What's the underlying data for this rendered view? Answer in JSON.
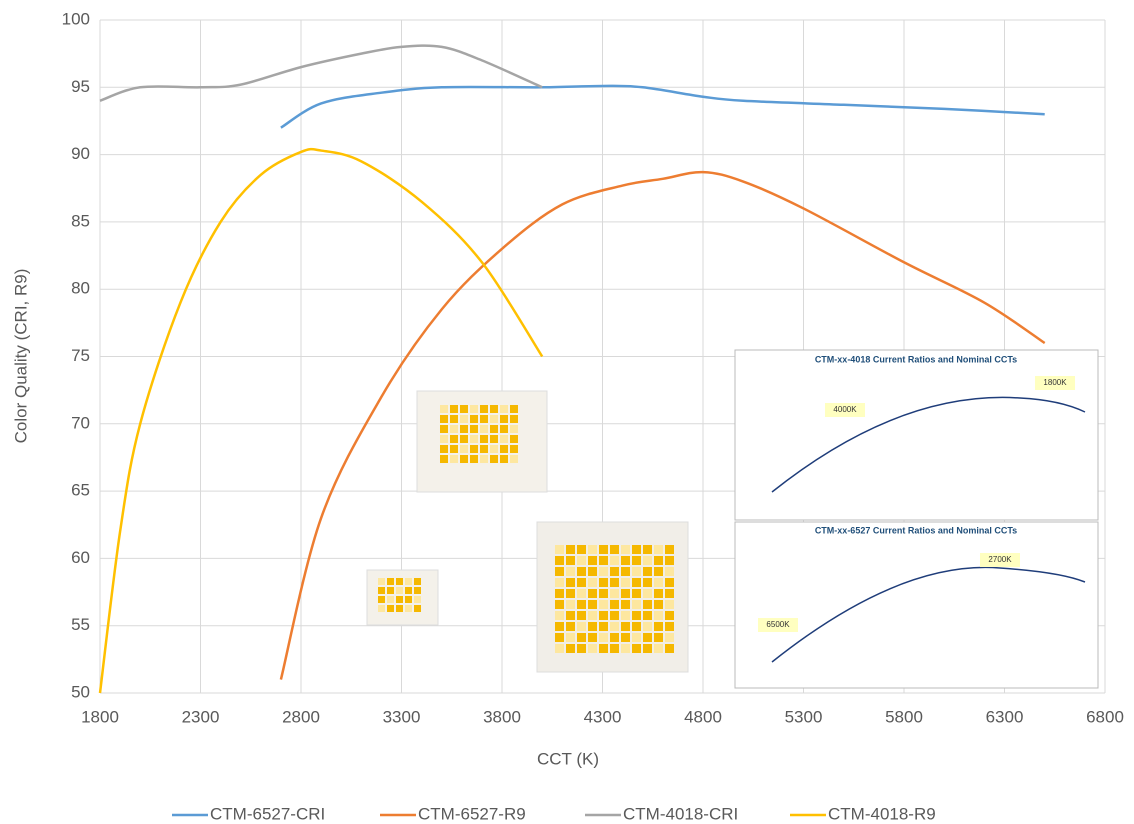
{
  "chart_data": {
    "type": "line",
    "xlabel": "CCT (K)",
    "ylabel": "Color Quality (CRI, R9)",
    "xlim": [
      1800,
      6800
    ],
    "xticks": [
      1800,
      2300,
      2800,
      3300,
      3800,
      4300,
      4800,
      5300,
      5800,
      6300,
      6800
    ],
    "ylim": [
      50,
      100
    ],
    "yticks": [
      50,
      55,
      60,
      65,
      70,
      75,
      80,
      85,
      90,
      95,
      100
    ],
    "grid": true,
    "legend": "bottom",
    "series": [
      {
        "name": "CTM-6527-CRI",
        "color": "#5b9bd5",
        "x": [
          2700,
          2900,
          3200,
          3500,
          4000,
          4300,
          4500,
          4800,
          5000,
          5500,
          6000,
          6500
        ],
        "values": [
          92,
          93.8,
          94.6,
          95,
          95,
          95.1,
          95,
          94.3,
          94,
          93.7,
          93.4,
          93
        ]
      },
      {
        "name": "CTM-6527-R9",
        "color": "#ed7d31",
        "x": [
          2700,
          2900,
          3200,
          3500,
          3800,
          4100,
          4400,
          4600,
          4800,
          5000,
          5300,
          5800,
          6200,
          6500
        ],
        "values": [
          51,
          63,
          72,
          78.5,
          83,
          86.3,
          87.7,
          88.2,
          88.7,
          88,
          86,
          82,
          79,
          76
        ]
      },
      {
        "name": "CTM-4018-CRI",
        "color": "#a5a5a5",
        "x": [
          1800,
          2000,
          2300,
          2500,
          2800,
          3100,
          3300,
          3500,
          3700,
          4000
        ],
        "values": [
          94,
          95,
          95,
          95.2,
          96.5,
          97.5,
          98,
          98,
          97,
          95
        ]
      },
      {
        "name": "CTM-4018-R9",
        "color": "#ffc000",
        "x": [
          1800,
          1900,
          2000,
          2200,
          2400,
          2600,
          2800,
          2900,
          3100,
          3400,
          3700,
          4000
        ],
        "values": [
          50,
          62,
          70,
          79,
          85,
          88.5,
          90.2,
          90.3,
          89.5,
          86.5,
          82,
          75
        ]
      }
    ],
    "insets": [
      {
        "title": "CTM-xx-4018 Current Ratios and Nominal CCTs",
        "labels": [
          "4000K",
          "1800K"
        ]
      },
      {
        "title": "CTM-xx-6527 Current Ratios and Nominal CCTs",
        "labels": [
          "6500K",
          "2700K"
        ]
      }
    ]
  }
}
